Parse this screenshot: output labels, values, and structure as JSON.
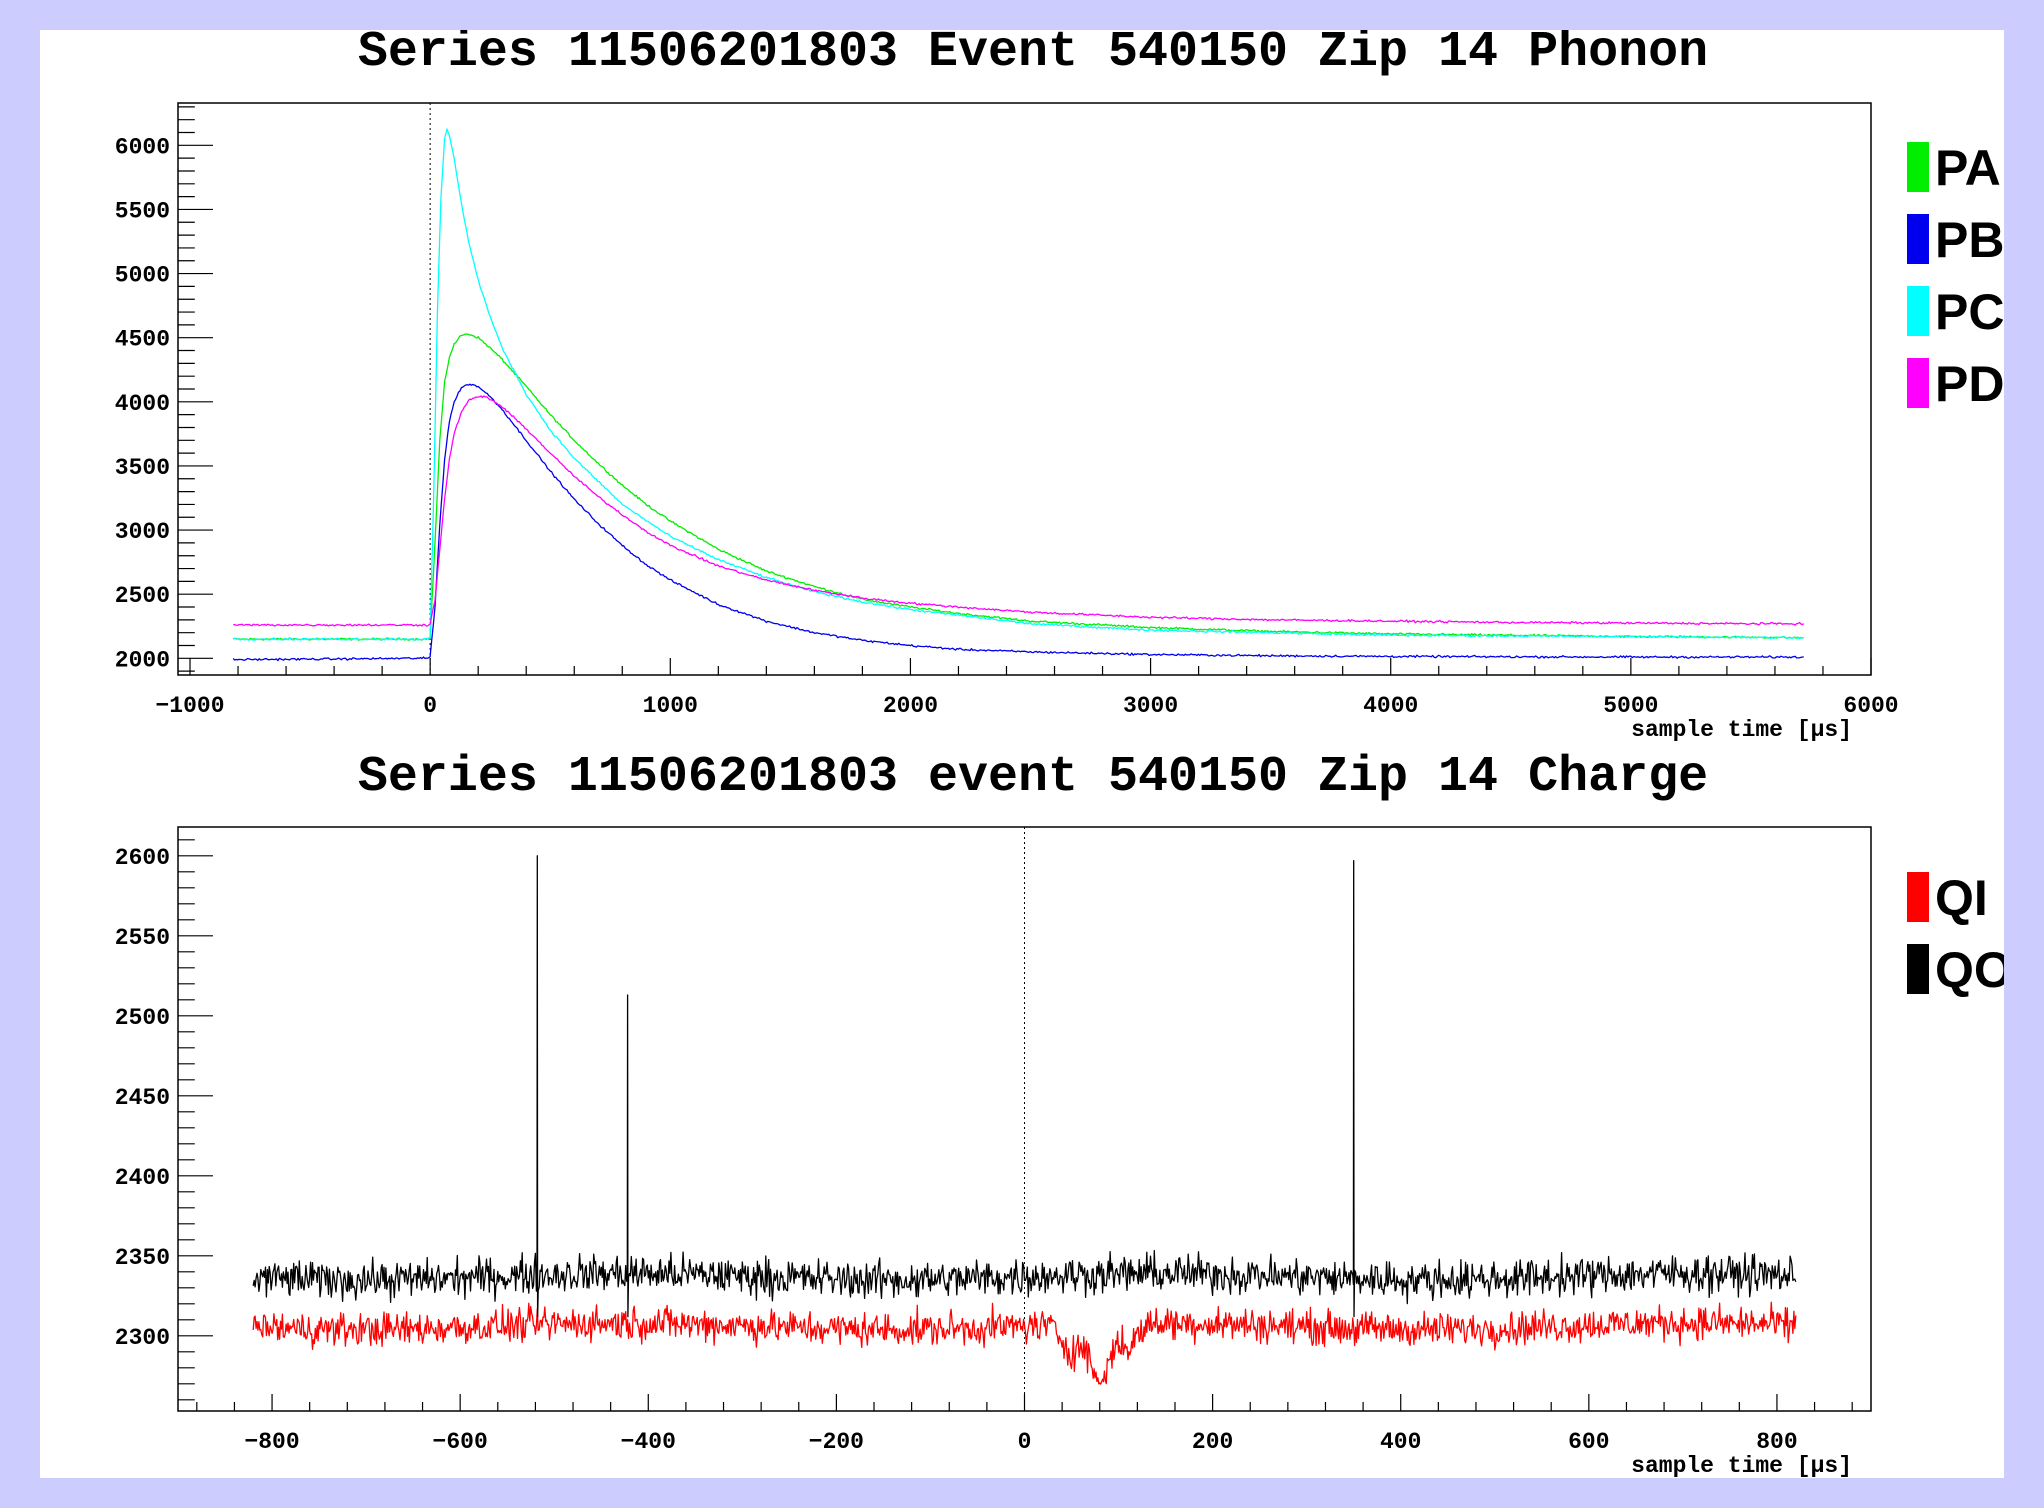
{
  "chart_data": [
    {
      "type": "line",
      "title": "Series 11506201803 Event 540150 Zip 14 Phonon",
      "xlabel": "sample time [μs]",
      "ylabel": "",
      "xlim": [
        -1050,
        6000
      ],
      "ylim": [
        1870,
        6330
      ],
      "x_ticks": [
        -1000,
        0,
        1000,
        2000,
        3000,
        4000,
        5000,
        6000
      ],
      "x_tick_labels": [
        "−1000",
        "0",
        "1000",
        "2000",
        "3000",
        "4000",
        "5000",
        "6000"
      ],
      "y_ticks": [
        2000,
        2500,
        3000,
        3500,
        4000,
        4500,
        5000,
        5500,
        6000
      ],
      "y_tick_labels": [
        "2000",
        "2500",
        "3000",
        "3500",
        "4000",
        "4500",
        "5000",
        "5500",
        "6000"
      ],
      "trigger_line_x": 0,
      "legend_position": "right",
      "grid": false,
      "series": [
        {
          "name": "PA",
          "color": "#00ee00",
          "x": [
            -820,
            -400,
            -100,
            -10,
            0,
            20,
            40,
            60,
            80,
            100,
            130,
            160,
            200,
            250,
            300,
            400,
            500,
            600,
            700,
            800,
            900,
            1000,
            1200,
            1400,
            1600,
            1800,
            2000,
            2200,
            2500,
            3000,
            3500,
            4000,
            4500,
            5000,
            5500,
            5720
          ],
          "y": [
            2150,
            2150,
            2150,
            2150,
            2160,
            2900,
            3700,
            4150,
            4350,
            4450,
            4520,
            4530,
            4500,
            4420,
            4330,
            4120,
            3900,
            3700,
            3520,
            3350,
            3200,
            3070,
            2850,
            2680,
            2560,
            2460,
            2400,
            2350,
            2290,
            2240,
            2210,
            2190,
            2180,
            2170,
            2165,
            2160
          ]
        },
        {
          "name": "PB",
          "color": "#0000ee",
          "x": [
            -820,
            -400,
            -100,
            -10,
            0,
            20,
            40,
            60,
            80,
            100,
            130,
            160,
            200,
            250,
            300,
            400,
            500,
            600,
            700,
            800,
            900,
            1000,
            1200,
            1400,
            1600,
            1800,
            2000,
            2200,
            2500,
            3000,
            3500,
            4000,
            4500,
            5000,
            5500,
            5720
          ],
          "y": [
            1990,
            1995,
            2000,
            2000,
            2010,
            2400,
            3050,
            3550,
            3850,
            4000,
            4110,
            4140,
            4120,
            4040,
            3940,
            3700,
            3460,
            3240,
            3050,
            2880,
            2730,
            2610,
            2420,
            2290,
            2200,
            2140,
            2100,
            2070,
            2050,
            2030,
            2020,
            2015,
            2012,
            2010,
            2010,
            2010
          ]
        },
        {
          "name": "PC",
          "color": "#00ffff",
          "x": [
            -820,
            -100,
            -10,
            0,
            15,
            30,
            45,
            60,
            70,
            80,
            100,
            130,
            160,
            200,
            250,
            300,
            400,
            500,
            600,
            800,
            1000,
            1200,
            1400,
            1600,
            1800,
            2000,
            2500,
            3000,
            4000,
            5000,
            5720
          ],
          "y": [
            2150,
            2150,
            2150,
            2160,
            3300,
            4700,
            5600,
            6050,
            6120,
            6080,
            5900,
            5550,
            5250,
            4950,
            4660,
            4420,
            4060,
            3780,
            3560,
            3200,
            2950,
            2770,
            2630,
            2520,
            2440,
            2380,
            2270,
            2220,
            2180,
            2170,
            2160
          ]
        },
        {
          "name": "PD",
          "color": "#ff00ff",
          "x": [
            -820,
            -400,
            -100,
            -10,
            0,
            20,
            40,
            60,
            80,
            100,
            130,
            160,
            200,
            230,
            260,
            300,
            400,
            500,
            600,
            700,
            800,
            900,
            1000,
            1200,
            1400,
            1600,
            1800,
            2000,
            2200,
            2500,
            3000,
            3500,
            4000,
            4500,
            5000,
            5500,
            5720
          ],
          "y": [
            2260,
            2260,
            2260,
            2260,
            2270,
            2450,
            2850,
            3250,
            3550,
            3750,
            3920,
            4010,
            4040,
            4040,
            4010,
            3960,
            3790,
            3600,
            3420,
            3260,
            3120,
            2990,
            2880,
            2720,
            2610,
            2530,
            2470,
            2430,
            2400,
            2360,
            2320,
            2300,
            2290,
            2280,
            2275,
            2270,
            2270
          ]
        }
      ]
    },
    {
      "type": "line",
      "title": "Series 11506201803 event 540150 Zip 14 Charge",
      "xlabel": "sample time [μs]",
      "ylabel": "",
      "xlim": [
        -900,
        900
      ],
      "ylim": [
        2253,
        2618
      ],
      "x_ticks": [
        -800,
        -600,
        -400,
        -200,
        0,
        200,
        400,
        600,
        800
      ],
      "x_tick_labels": [
        "−800",
        "−600",
        "−400",
        "−200",
        "0",
        "200",
        "400",
        "600",
        "800"
      ],
      "y_ticks": [
        2300,
        2350,
        2400,
        2450,
        2500,
        2550,
        2600
      ],
      "y_tick_labels": [
        "2300",
        "2350",
        "2400",
        "2450",
        "2500",
        "2550",
        "2600"
      ],
      "trigger_line_x": 0,
      "legend_position": "right",
      "grid": false,
      "series": [
        {
          "name": "QI",
          "color": "#ff0000",
          "x_range": [
            -820,
            820
          ],
          "baseline": 2306,
          "noise_amplitude": 9,
          "features": [
            {
              "x": 50,
              "y": 2290
            },
            {
              "x": 80,
              "y": 2270
            },
            {
              "x": 110,
              "y": 2292
            }
          ]
        },
        {
          "name": "QO",
          "color": "#000000",
          "x_range": [
            -820,
            820
          ],
          "baseline": 2337,
          "noise_amplitude": 10,
          "spikes": [
            {
              "x": -518,
              "y": 2600
            },
            {
              "x": -422,
              "y": 2513
            },
            {
              "x": 350,
              "y": 2597
            }
          ]
        }
      ]
    }
  ]
}
